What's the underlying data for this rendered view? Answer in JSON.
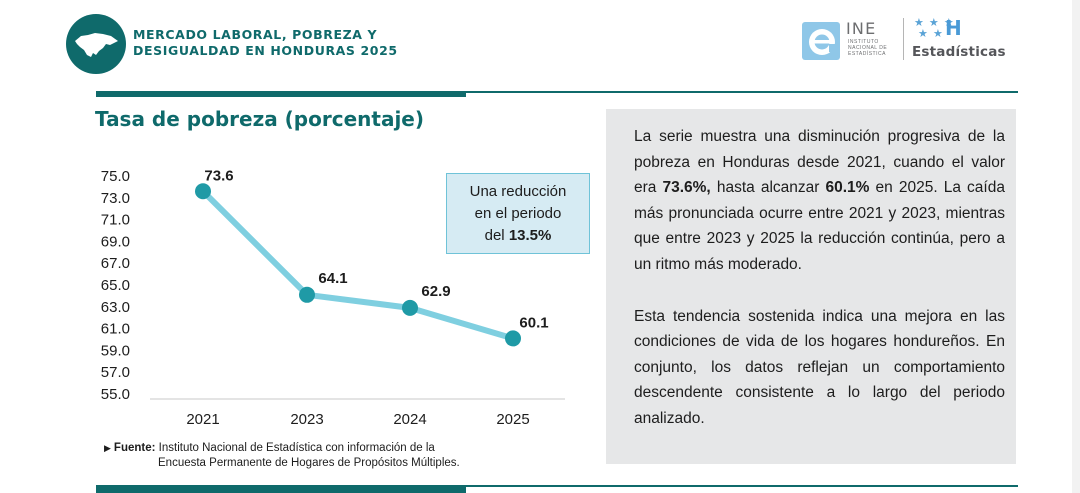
{
  "header": {
    "title_line1": "MERCADO LABORAL, POBREZA Y",
    "title_line2": "DESIGUALDAD EN HONDURAS 2025",
    "ine_name": "INE",
    "ine_sub1": "INSTITUTO",
    "ine_sub2": "NACIONAL DE",
    "ine_sub3": "ESTADÍSTICA",
    "partner_mark": "H",
    "partner_label": "Estadísticas"
  },
  "colors": {
    "teal": "#0f6a6b",
    "line": "#7fcfe0",
    "marker": "#1f9aa6",
    "callout_bg": "#d6ebf3",
    "panel_bg": "#e6e7e8"
  },
  "chart_data": {
    "type": "line",
    "title": "Tasa de pobreza (porcentaje)",
    "categories": [
      "2021",
      "2023",
      "2024",
      "2025"
    ],
    "values": [
      73.6,
      64.1,
      62.9,
      60.1
    ],
    "data_labels": [
      "73.6",
      "64.1",
      "62.9",
      "60.1"
    ],
    "ylim": [
      55.0,
      75.0
    ],
    "yticks": [
      "75.0",
      "73.0",
      "71.0",
      "69.0",
      "67.0",
      "65.0",
      "63.0",
      "61.0",
      "59.0",
      "57.0",
      "55.0"
    ],
    "xlabel": "",
    "ylabel": "",
    "grid": false,
    "legend": "none"
  },
  "callout": {
    "line1": "Una reducción",
    "line2": "en el periodo",
    "line3_prefix": "del ",
    "line3_value": "13.5%"
  },
  "source": {
    "label": "Fuente:",
    "line1": "Instituto Nacional de Estadística con información de la",
    "line2": "Encuesta Permanente de Hogares de Propósitos Múltiples."
  },
  "analysis": {
    "p1_a": "La serie muestra una disminución progresiva de la pobreza en Honduras desde 2021, cuando el valor era ",
    "p1_b": "73.6%,",
    "p1_c": " hasta alcanzar ",
    "p1_d": "60.1%",
    "p1_e": " en 2025. La caída más pronunciada ocurre entre 2021 y 2023, mientras que entre 2023 y 2025 la reducción continúa, pero a un ritmo más moderado.",
    "p2": "Esta tendencia sostenida indica una mejora en las condiciones de vida de los hogares hondureños. En conjunto, los datos reflejan un comportamiento descendente consistente a lo largo del periodo analizado."
  }
}
